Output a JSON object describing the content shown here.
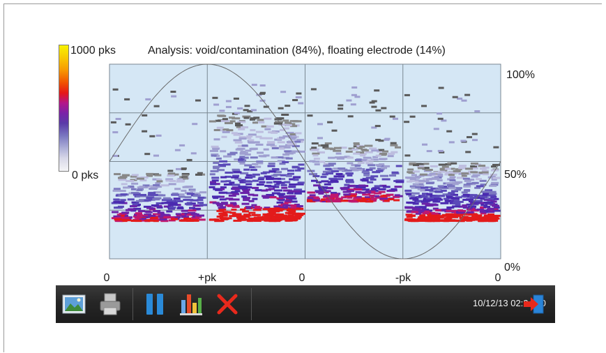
{
  "chart_data": {
    "type": "heatmap",
    "title": "Analysis: void/contamination (84%), floating electrode (14%)",
    "colorbar": {
      "max_label": "1000 pks",
      "min_label": "0 pks"
    },
    "x_ticks": [
      "0",
      "+pk",
      "0",
      "-pk",
      "0"
    ],
    "y_ticks": [
      "100%",
      "50%",
      "0%"
    ],
    "ylim": [
      0,
      100
    ],
    "grid": true,
    "reference_curve": "sine",
    "phase_clusters": [
      {
        "phase": "0 to +pk (start)",
        "amplitude_range": [
          20,
          45
        ],
        "intensity": "medium"
      },
      {
        "phase": "+pk to 0",
        "amplitude_range": [
          20,
          75
        ],
        "intensity": "high"
      },
      {
        "phase": "0 to -pk (start)",
        "amplitude_range": [
          30,
          60
        ],
        "intensity": "medium"
      },
      {
        "phase": "-pk to 0",
        "amplitude_range": [
          20,
          50
        ],
        "intensity": "high"
      }
    ]
  },
  "toolbar": {
    "timestamp": "10/12/13 02:24:10",
    "buttons": [
      "image-icon",
      "printer-icon",
      "pause-icon",
      "bar-chart-icon",
      "close-icon",
      "exit-icon"
    ]
  },
  "colors": {
    "plot_background": "#d5e7f5",
    "grid_line": "#7a8792",
    "cluster_high": "#e31b1b",
    "cluster_mid": "#4a2ab0",
    "cluster_low": "#9f9fd0",
    "toolbar_bg": "#262626"
  }
}
